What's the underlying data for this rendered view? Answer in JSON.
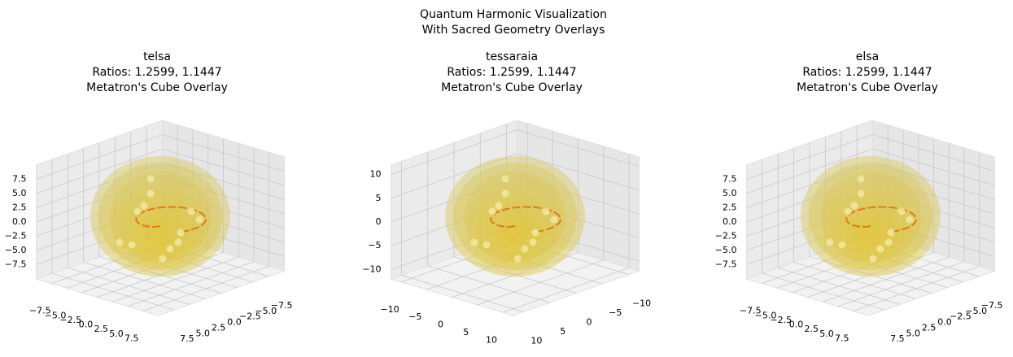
{
  "title": [
    "Quantum Harmonic Visualization",
    "With Sacred Geometry Overlays"
  ],
  "chart_data": [
    {
      "type": "3d-surface",
      "title": [
        "telsa",
        "Ratios: 1.2599, 1.1447",
        "Metatron's Cube Overlay"
      ],
      "xlim": [
        -10,
        10
      ],
      "ylim": [
        -10,
        10
      ],
      "zlim": [
        -10,
        10
      ],
      "xticks": [
        {
          "value": -7.5,
          "label": "−7.5"
        },
        {
          "value": -5,
          "label": "−5.0"
        },
        {
          "value": -2.5,
          "label": "−2.5"
        },
        {
          "value": 0,
          "label": "0.0"
        },
        2.5,
        {
          "value": 5,
          "label": "5.0"
        },
        7.5
      ],
      "yticks": [
        {
          "value": -7.5,
          "label": "−7.5"
        },
        {
          "value": -5,
          "label": "−5.0"
        },
        {
          "value": -2.5,
          "label": "−2.5"
        },
        {
          "value": 0,
          "label": "0.0"
        },
        2.5,
        {
          "value": 5,
          "label": "5.0"
        },
        7.5
      ],
      "zticks": [
        {
          "value": -7.5,
          "label": "−7.5"
        },
        {
          "value": -5,
          "label": "−5.0"
        },
        {
          "value": -2.5,
          "label": "−2.5"
        },
        {
          "value": 0,
          "label": "0.0"
        },
        2.5,
        {
          "value": 5,
          "label": "5.0"
        },
        7.5
      ]
    },
    {
      "type": "3d-surface",
      "title": [
        "tessaraia",
        "Ratios: 1.2599, 1.1447",
        "Metatron's Cube Overlay"
      ],
      "xlim": [
        -12,
        12
      ],
      "ylim": [
        -12,
        12
      ],
      "zlim": [
        -12,
        12
      ],
      "xticks": [
        {
          "value": -10,
          "label": "−10"
        },
        {
          "value": -5,
          "label": "−5"
        },
        0,
        5,
        10
      ],
      "yticks": [
        {
          "value": -10,
          "label": "−10"
        },
        {
          "value": -5,
          "label": "−5"
        },
        0,
        5,
        10
      ],
      "zticks": [
        {
          "value": -10,
          "label": "−10"
        },
        {
          "value": -5,
          "label": "−5"
        },
        0,
        5,
        10
      ]
    },
    {
      "type": "3d-surface",
      "title": [
        "elsa",
        "Ratios: 1.2599, 1.1447",
        "Metatron's Cube Overlay"
      ],
      "xlim": [
        -10,
        10
      ],
      "ylim": [
        -10,
        10
      ],
      "zlim": [
        -10,
        10
      ],
      "xticks": [
        {
          "value": -7.5,
          "label": "−7.5"
        },
        {
          "value": -5,
          "label": "−5.0"
        },
        {
          "value": -2.5,
          "label": "−2.5"
        },
        {
          "value": 0,
          "label": "0.0"
        },
        2.5,
        {
          "value": 5,
          "label": "5.0"
        },
        7.5
      ],
      "yticks": [
        {
          "value": -7.5,
          "label": "−7.5"
        },
        {
          "value": -5,
          "label": "−5.0"
        },
        {
          "value": -2.5,
          "label": "−2.5"
        },
        {
          "value": 0,
          "label": "0.0"
        },
        2.5,
        {
          "value": 5,
          "label": "5.0"
        },
        7.5
      ],
      "zticks": [
        {
          "value": -7.5,
          "label": "−7.5"
        },
        {
          "value": -5,
          "label": "−5.0"
        },
        {
          "value": -2.5,
          "label": "−2.5"
        },
        {
          "value": 0,
          "label": "0.0"
        },
        2.5,
        {
          "value": 5,
          "label": "5.0"
        },
        7.5
      ]
    }
  ]
}
